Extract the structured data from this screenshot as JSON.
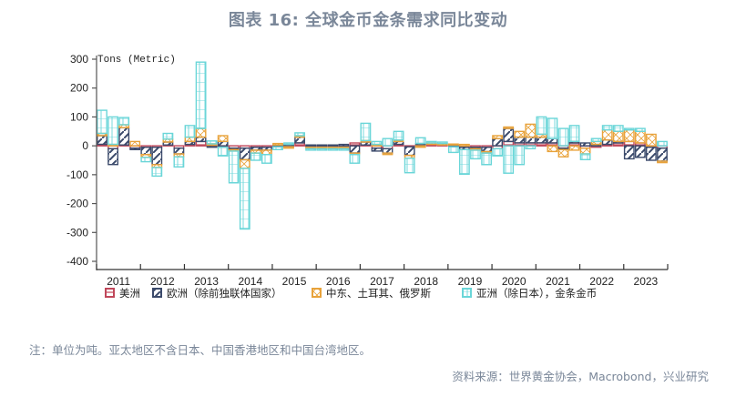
{
  "title": "图表 16: 全球金币金条需求同比变动",
  "note": "注：单位为吨。亚太地区不含日本、中国香港地区和中国台湾地区。",
  "source": "资料来源：世界黄金协会，Macrobond，兴业研究",
  "chart_data": {
    "type": "bar",
    "stacked": true,
    "title": "图表 16: 全球金币金条需求同比变动",
    "ylabel": "Tons (Metric)",
    "xlabel": "",
    "ylim": [
      -400,
      300
    ],
    "yticks": [
      300,
      200,
      100,
      0,
      -100,
      -200,
      -300,
      -400
    ],
    "x_tick_labels": [
      "2011",
      "2012",
      "2013",
      "2014",
      "2015",
      "2016",
      "2017",
      "2018",
      "2019",
      "2020",
      "2021",
      "2022",
      "2023"
    ],
    "frequency": "quarterly",
    "grid": false,
    "legend_position": "bottom",
    "categories": [
      "2011Q1",
      "2011Q2",
      "2011Q3",
      "2011Q4",
      "2012Q1",
      "2012Q2",
      "2012Q3",
      "2012Q4",
      "2013Q1",
      "2013Q2",
      "2013Q3",
      "2013Q4",
      "2014Q1",
      "2014Q2",
      "2014Q3",
      "2014Q4",
      "2015Q1",
      "2015Q2",
      "2015Q3",
      "2015Q4",
      "2016Q1",
      "2016Q2",
      "2016Q3",
      "2016Q4",
      "2017Q1",
      "2017Q2",
      "2017Q3",
      "2017Q4",
      "2018Q1",
      "2018Q2",
      "2018Q3",
      "2018Q4",
      "2019Q1",
      "2019Q2",
      "2019Q3",
      "2019Q4",
      "2020Q1",
      "2020Q2",
      "2020Q3",
      "2020Q4",
      "2021Q1",
      "2021Q2",
      "2021Q3",
      "2021Q4",
      "2022Q1",
      "2022Q2",
      "2022Q3",
      "2022Q4",
      "2023Q1",
      "2023Q2",
      "2023Q3",
      "2023Q4"
    ],
    "series": [
      {
        "name": "美洲",
        "color": "#c0475a",
        "pattern": "horizontal",
        "values": [
          5,
          -10,
          3,
          -8,
          -5,
          -5,
          3,
          -8,
          5,
          15,
          2,
          -5,
          -8,
          -8,
          -5,
          -5,
          -3,
          -3,
          10,
          -5,
          -5,
          -5,
          -5,
          10,
          3,
          -8,
          -10,
          5,
          -3,
          3,
          5,
          3,
          3,
          -5,
          -5,
          -5,
          -10,
          15,
          10,
          10,
          10,
          10,
          -8,
          10,
          -8,
          -5,
          5,
          10,
          15,
          10,
          -5,
          -8
        ]
      },
      {
        "name": "欧洲（除前独联体国家）",
        "color": "#3b4a6b",
        "pattern": "diagonal",
        "values": [
          30,
          -55,
          60,
          -5,
          -25,
          -60,
          10,
          -20,
          10,
          15,
          -5,
          15,
          -5,
          -40,
          -10,
          -10,
          3,
          5,
          20,
          3,
          3,
          3,
          5,
          -25,
          10,
          -10,
          -15,
          10,
          -30,
          5,
          0,
          0,
          -3,
          -8,
          -5,
          -15,
          25,
          45,
          20,
          20,
          20,
          15,
          -5,
          5,
          10,
          5,
          15,
          5,
          -45,
          -40,
          -45,
          -45
        ]
      },
      {
        "name": "中东、土耳其、俄罗斯",
        "color": "#e8a23a",
        "pattern": "cross",
        "values": [
          8,
          5,
          10,
          15,
          -10,
          -10,
          10,
          -10,
          15,
          30,
          5,
          20,
          -5,
          -30,
          -10,
          -15,
          5,
          -5,
          5,
          -5,
          -5,
          -5,
          -5,
          -5,
          5,
          5,
          -5,
          5,
          -10,
          -5,
          5,
          5,
          3,
          5,
          -5,
          -5,
          10,
          5,
          20,
          45,
          10,
          -20,
          -25,
          -15,
          -20,
          10,
          35,
          35,
          40,
          40,
          40,
          -5
        ]
      },
      {
        "name": "亚洲（除日本），金条金币",
        "color": "#6ad6d8",
        "pattern": "grid",
        "values": [
          80,
          95,
          25,
          0,
          -15,
          -30,
          20,
          -35,
          40,
          230,
          10,
          -30,
          -110,
          -210,
          -25,
          -30,
          -10,
          5,
          10,
          -5,
          -5,
          -5,
          -5,
          -30,
          60,
          10,
          25,
          30,
          -50,
          20,
          5,
          5,
          -20,
          -85,
          -30,
          -40,
          -25,
          -95,
          -65,
          -10,
          60,
          70,
          60,
          55,
          -20,
          10,
          15,
          20,
          5,
          10,
          0,
          15
        ]
      }
    ]
  },
  "legend": {
    "items": [
      {
        "label": "美洲",
        "color": "#c0475a"
      },
      {
        "label": "欧洲（除前独联体国家）",
        "color": "#3b4a6b"
      },
      {
        "label": "中东、土耳其、俄罗斯",
        "color": "#e8a23a"
      },
      {
        "label": "亚洲（除日本），金条金币",
        "color": "#6ad6d8"
      }
    ]
  }
}
